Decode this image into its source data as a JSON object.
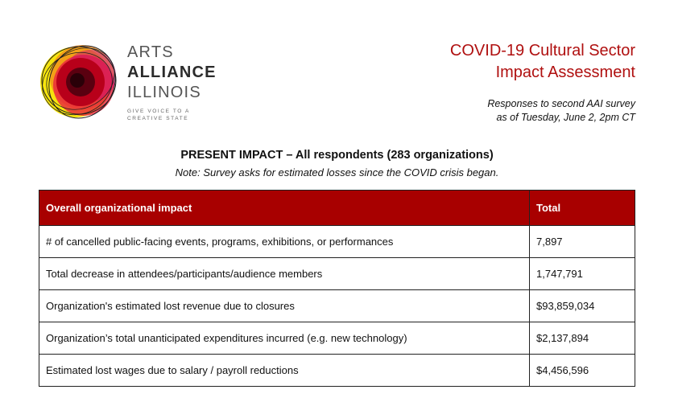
{
  "logo": {
    "line1": "ARTS",
    "line2": "ALLIANCE",
    "line3": "ILLINOIS",
    "tagline1": "GIVE VOICE TO A",
    "tagline2": "CREATIVE STATE",
    "colors": [
      "#f5e300",
      "#f08a1c",
      "#e8233f",
      "#c8007a",
      "#7a0010",
      "#1f1f1f"
    ]
  },
  "header": {
    "title_line1": "COVID-19 Cultural Sector",
    "title_line2": "Impact Assessment",
    "subtitle_line1": "Responses to second AAI survey",
    "subtitle_line2": "as of Tuesday, June 2, 2pm CT",
    "accent_color": "#b01010"
  },
  "section": {
    "heading": "PRESENT IMPACT – All respondents (283 organizations)",
    "note": "Note: Survey asks for estimated losses since the COVID crisis began."
  },
  "table": {
    "header_color": "#a80000",
    "headers": [
      "Overall organizational impact",
      "Total"
    ],
    "rows": [
      [
        "# of cancelled public-facing events, programs, exhibitions, or performances",
        "7,897"
      ],
      [
        "Total decrease in attendees/participants/audience members",
        "1,747,791"
      ],
      [
        "Organization's estimated lost revenue due to closures",
        "$93,859,034"
      ],
      [
        "Organization’s total unanticipated expenditures incurred (e.g. new technology)",
        "$2,137,894"
      ],
      [
        "Estimated lost wages due to salary / payroll reductions",
        "$4,456,596"
      ]
    ]
  }
}
